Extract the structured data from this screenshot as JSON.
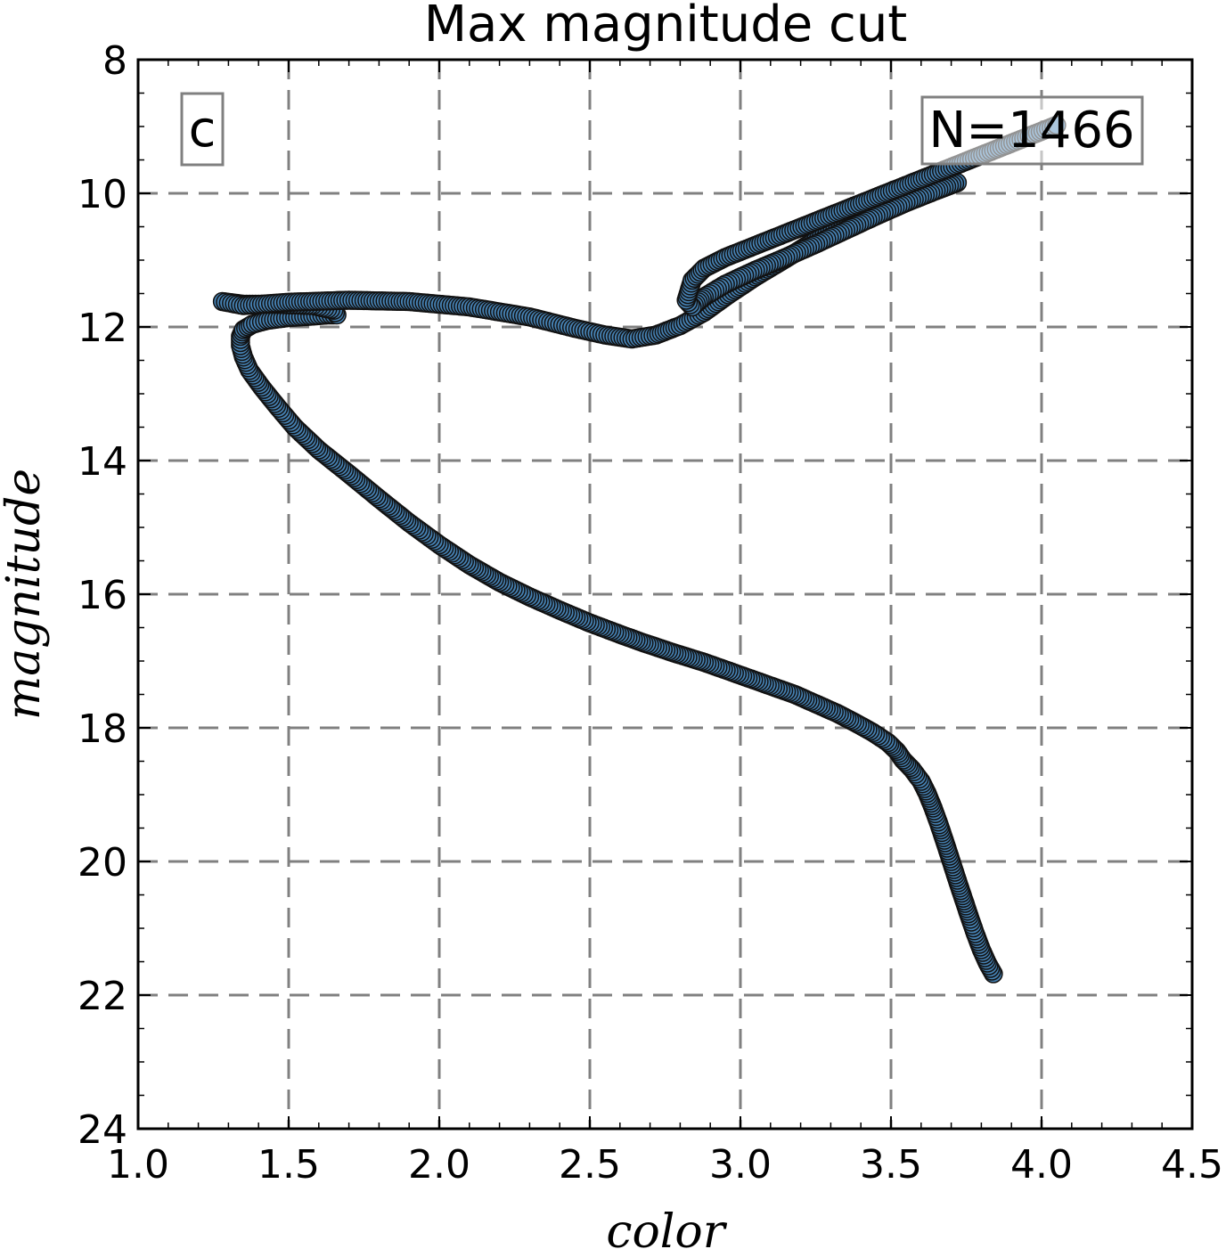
{
  "chart_data": {
    "type": "scatter",
    "title": "Max magnitude cut",
    "xlabel": "color",
    "ylabel": "magnitude",
    "xlim": [
      1.0,
      4.5
    ],
    "ylim": [
      24,
      8
    ],
    "y_inverted": true,
    "grid": true,
    "xticks": [
      "1.0",
      "1.5",
      "2.0",
      "2.5",
      "3.0",
      "3.5",
      "4.0",
      "4.5"
    ],
    "yticks": [
      "8",
      "10",
      "12",
      "14",
      "16",
      "18",
      "20",
      "22",
      "24"
    ],
    "panel_label": "c",
    "count_label": "N=1466",
    "marker_color": "#4682B4",
    "edge_color": "#111111",
    "grid_color": "#808080",
    "series": [
      {
        "x": [
          3.84,
          3.82,
          3.8,
          3.78,
          3.76,
          3.74,
          3.72,
          3.7,
          3.68,
          3.66,
          3.64,
          3.62,
          3.6,
          3.57,
          3.54,
          3.52,
          3.49,
          3.44,
          3.38,
          3.32,
          3.25,
          3.18,
          3.08,
          2.98,
          2.88,
          2.78,
          2.68,
          2.6,
          2.5,
          2.4,
          2.3,
          2.2,
          2.1,
          2.0,
          1.9,
          1.8,
          1.7,
          1.6,
          1.52,
          1.46,
          1.41,
          1.37,
          1.35,
          1.34,
          1.34,
          1.35,
          1.38,
          1.43,
          1.5,
          1.57,
          1.63,
          1.66,
          1.65,
          1.58,
          1.45,
          1.35,
          1.28,
          1.35,
          1.5,
          1.7,
          1.9,
          2.1,
          2.3,
          2.45,
          2.55,
          2.64,
          2.72,
          2.8,
          2.88,
          2.96,
          3.05,
          3.15,
          3.25,
          3.35,
          3.45,
          3.55,
          3.65,
          3.72,
          3.65,
          3.55,
          3.45,
          3.35,
          3.25,
          3.15,
          3.05,
          2.95,
          2.88,
          2.84,
          2.82,
          2.84,
          2.88,
          2.95,
          3.05,
          3.15,
          3.25,
          3.35,
          3.45,
          3.55,
          3.65,
          3.75,
          3.85,
          3.95,
          4.05
        ],
        "y": [
          21.68,
          21.52,
          21.32,
          21.08,
          20.82,
          20.55,
          20.28,
          20.0,
          19.72,
          19.45,
          19.2,
          18.98,
          18.8,
          18.62,
          18.48,
          18.35,
          18.22,
          18.07,
          17.92,
          17.78,
          17.64,
          17.5,
          17.34,
          17.18,
          17.02,
          16.88,
          16.73,
          16.6,
          16.43,
          16.24,
          16.04,
          15.82,
          15.56,
          15.26,
          14.93,
          14.57,
          14.2,
          13.84,
          13.5,
          13.18,
          12.9,
          12.65,
          12.45,
          12.28,
          12.14,
          12.04,
          11.96,
          11.9,
          11.86,
          11.84,
          11.82,
          11.82,
          11.75,
          11.68,
          11.66,
          11.66,
          11.62,
          11.68,
          11.63,
          11.6,
          11.62,
          11.7,
          11.85,
          12.02,
          12.12,
          12.18,
          12.12,
          11.98,
          11.78,
          11.52,
          11.25,
          10.98,
          10.7,
          10.46,
          10.24,
          10.06,
          9.92,
          9.84,
          9.96,
          10.14,
          10.34,
          10.55,
          10.76,
          10.96,
          11.15,
          11.36,
          11.55,
          11.7,
          11.6,
          11.3,
          11.12,
          10.96,
          10.78,
          10.6,
          10.42,
          10.24,
          10.06,
          9.88,
          9.7,
          9.52,
          9.34,
          9.16,
          8.98
        ]
      }
    ]
  }
}
